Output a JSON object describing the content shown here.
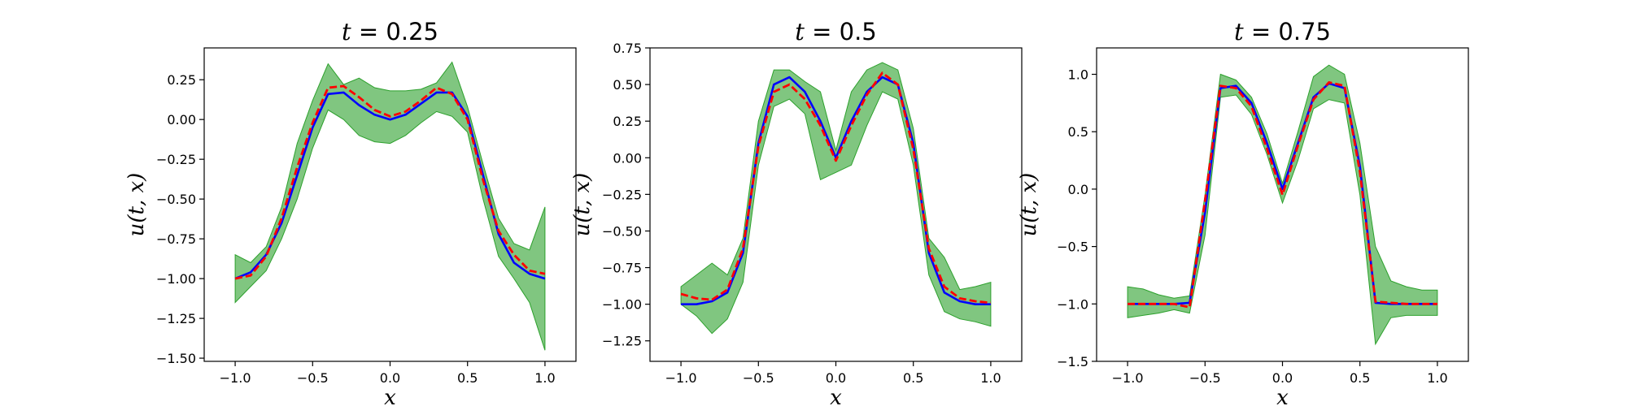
{
  "chart_data": [
    {
      "type": "line",
      "title": "t = 0.25",
      "xlabel": "x",
      "ylabel": "u(t, x)",
      "xlim": [
        -1.2,
        1.2
      ],
      "ylim": [
        -1.52,
        0.45
      ],
      "xticks": [
        -1.0,
        -0.5,
        0.0,
        0.5,
        1.0
      ],
      "xtick_labels": [
        "−1.0",
        "−0.5",
        "0.0",
        "0.5",
        "1.0"
      ],
      "yticks": [
        -1.5,
        -1.25,
        -1.0,
        -0.75,
        -0.5,
        -0.25,
        0.0,
        0.25
      ],
      "ytick_labels": [
        "−1.50",
        "−1.25",
        "−1.00",
        "−0.75",
        "−0.50",
        "−0.25",
        "0.00",
        "0.25"
      ],
      "x": [
        -1.0,
        -0.9,
        -0.8,
        -0.7,
        -0.6,
        -0.5,
        -0.4,
        -0.3,
        -0.2,
        -0.1,
        0.0,
        0.1,
        0.2,
        0.3,
        0.4,
        0.5,
        0.6,
        0.7,
        0.8,
        0.9,
        1.0
      ],
      "series": [
        {
          "color": "#0000ff",
          "style": "solid",
          "values": [
            -1.0,
            -0.96,
            -0.85,
            -0.65,
            -0.35,
            -0.05,
            0.16,
            0.17,
            0.09,
            0.03,
            0.0,
            0.03,
            0.1,
            0.17,
            0.17,
            0.02,
            -0.35,
            -0.72,
            -0.9,
            -0.97,
            -1.0
          ]
        },
        {
          "color": "#ff0000",
          "style": "dashed",
          "values": [
            -1.0,
            -0.98,
            -0.86,
            -0.62,
            -0.3,
            -0.02,
            0.2,
            0.21,
            0.14,
            0.06,
            0.02,
            0.05,
            0.12,
            0.2,
            0.16,
            0.0,
            -0.38,
            -0.7,
            -0.85,
            -0.95,
            -0.97
          ]
        }
      ],
      "band": {
        "color": "#2ca02c",
        "upper": [
          -0.85,
          -0.9,
          -0.8,
          -0.55,
          -0.15,
          0.12,
          0.35,
          0.22,
          0.26,
          0.2,
          0.18,
          0.18,
          0.19,
          0.23,
          0.36,
          0.08,
          -0.28,
          -0.62,
          -0.78,
          -0.82,
          -0.55
        ],
        "lower": [
          -1.15,
          -1.05,
          -0.95,
          -0.75,
          -0.5,
          -0.18,
          0.06,
          0.0,
          -0.1,
          -0.14,
          -0.15,
          -0.1,
          -0.02,
          0.05,
          0.02,
          -0.08,
          -0.5,
          -0.86,
          -1.0,
          -1.15,
          -1.45
        ]
      }
    },
    {
      "type": "line",
      "title": "t = 0.5",
      "xlabel": "x",
      "ylabel": "u(t, x)",
      "xlim": [
        -1.2,
        1.2
      ],
      "ylim": [
        -1.39,
        0.75
      ],
      "xticks": [
        -1.0,
        -0.5,
        0.0,
        0.5,
        1.0
      ],
      "xtick_labels": [
        "−1.0",
        "−0.5",
        "0.0",
        "0.5",
        "1.0"
      ],
      "yticks": [
        -1.25,
        -1.0,
        -0.75,
        -0.5,
        -0.25,
        0.0,
        0.25,
        0.5,
        0.75
      ],
      "ytick_labels": [
        "−1.25",
        "−1.00",
        "−0.75",
        "−0.50",
        "−0.25",
        "0.00",
        "0.25",
        "0.50",
        "0.75"
      ],
      "x": [
        -1.0,
        -0.9,
        -0.8,
        -0.7,
        -0.6,
        -0.5,
        -0.4,
        -0.3,
        -0.2,
        -0.1,
        0.0,
        0.1,
        0.2,
        0.3,
        0.4,
        0.5,
        0.6,
        0.7,
        0.8,
        0.9,
        1.0
      ],
      "series": [
        {
          "color": "#0000ff",
          "style": "solid",
          "values": [
            -1.0,
            -1.0,
            -0.98,
            -0.92,
            -0.65,
            0.1,
            0.5,
            0.55,
            0.45,
            0.25,
            0.0,
            0.25,
            0.45,
            0.55,
            0.5,
            0.1,
            -0.65,
            -0.92,
            -0.98,
            -1.0,
            -1.0
          ]
        },
        {
          "color": "#ff0000",
          "style": "dashed",
          "values": [
            -0.93,
            -0.96,
            -0.97,
            -0.9,
            -0.62,
            0.08,
            0.45,
            0.5,
            0.4,
            0.22,
            -0.02,
            0.22,
            0.43,
            0.58,
            0.5,
            0.06,
            -0.62,
            -0.88,
            -0.96,
            -0.98,
            -0.99
          ]
        }
      ],
      "band": {
        "color": "#2ca02c",
        "upper": [
          -0.88,
          -0.8,
          -0.72,
          -0.8,
          -0.55,
          0.25,
          0.6,
          0.6,
          0.52,
          0.45,
          0.05,
          0.45,
          0.6,
          0.65,
          0.6,
          0.2,
          -0.55,
          -0.68,
          -0.9,
          -0.88,
          -0.85
        ],
        "lower": [
          -1.0,
          -1.08,
          -1.2,
          -1.1,
          -0.85,
          -0.05,
          0.35,
          0.4,
          0.3,
          -0.15,
          -0.1,
          -0.05,
          0.22,
          0.45,
          0.4,
          -0.05,
          -0.8,
          -1.05,
          -1.1,
          -1.12,
          -1.15
        ]
      }
    },
    {
      "type": "line",
      "title": "t = 0.75",
      "xlabel": "x",
      "ylabel": "u(t, x)",
      "xlim": [
        -1.2,
        1.2
      ],
      "ylim": [
        -1.5,
        1.23
      ],
      "xticks": [
        -1.0,
        -0.5,
        0.0,
        0.5,
        1.0
      ],
      "xtick_labels": [
        "−1.0",
        "−0.5",
        "0.0",
        "0.5",
        "1.0"
      ],
      "yticks": [
        -1.5,
        -1.0,
        -0.5,
        0.0,
        0.5,
        1.0
      ],
      "ytick_labels": [
        "−1.5",
        "−1.0",
        "−0.5",
        "0.0",
        "0.5",
        "1.0"
      ],
      "x": [
        -1.0,
        -0.9,
        -0.8,
        -0.7,
        -0.6,
        -0.5,
        -0.4,
        -0.3,
        -0.2,
        -0.1,
        0.0,
        0.1,
        0.2,
        0.3,
        0.4,
        0.5,
        0.6,
        0.7,
        0.8,
        0.9,
        1.0
      ],
      "series": [
        {
          "color": "#0000ff",
          "style": "solid",
          "values": [
            -1.0,
            -1.0,
            -1.0,
            -1.0,
            -0.99,
            -0.2,
            0.88,
            0.9,
            0.75,
            0.4,
            0.0,
            0.4,
            0.8,
            0.92,
            0.88,
            0.2,
            -0.99,
            -1.0,
            -1.0,
            -1.0,
            -1.0
          ]
        },
        {
          "color": "#ff0000",
          "style": "dashed",
          "values": [
            -1.0,
            -1.0,
            -1.0,
            -1.0,
            -1.03,
            -0.1,
            0.9,
            0.88,
            0.72,
            0.35,
            -0.05,
            0.38,
            0.78,
            0.93,
            0.9,
            0.15,
            -0.98,
            -0.99,
            -1.0,
            -1.0,
            -1.0
          ]
        }
      ],
      "band": {
        "color": "#2ca02c",
        "upper": [
          -0.85,
          -0.87,
          -0.92,
          -0.95,
          -0.93,
          -0.05,
          1.0,
          0.95,
          0.8,
          0.48,
          0.05,
          0.5,
          0.98,
          1.08,
          1.0,
          0.4,
          -0.5,
          -0.8,
          -0.85,
          -0.88,
          -0.88
        ],
        "lower": [
          -1.12,
          -1.1,
          -1.08,
          -1.05,
          -1.08,
          -0.4,
          0.8,
          0.82,
          0.65,
          0.3,
          -0.12,
          0.25,
          0.7,
          0.78,
          0.75,
          -0.05,
          -1.35,
          -1.12,
          -1.1,
          -1.1,
          -1.1
        ]
      }
    }
  ]
}
